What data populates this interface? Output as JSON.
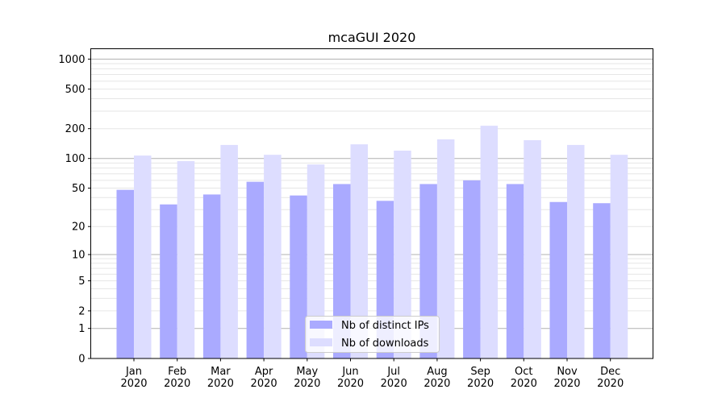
{
  "chart_data": {
    "type": "bar",
    "title": "mcaGUI 2020",
    "xlabel": "",
    "ylabel": "",
    "yscale": "log(v+1)",
    "ylim": [
      0,
      1270
    ],
    "yticks": [
      0,
      1,
      2,
      5,
      10,
      20,
      50,
      100,
      200,
      500,
      1000
    ],
    "categories": [
      "Jan\n2020",
      "Feb\n2020",
      "Mar\n2020",
      "Apr\n2020",
      "May\n2020",
      "Jun\n2020",
      "Jul\n2020",
      "Aug\n2020",
      "Sep\n2020",
      "Oct\n2020",
      "Nov\n2020",
      "Dec\n2020"
    ],
    "series": [
      {
        "name": "Nb of distinct IPs",
        "color": "#aaaaff",
        "values": [
          48,
          34,
          43,
          58,
          42,
          55,
          37,
          55,
          60,
          55,
          36,
          35
        ]
      },
      {
        "name": "Nb of downloads",
        "color": "#ddddff",
        "values": [
          107,
          94,
          137,
          109,
          87,
          139,
          120,
          156,
          214,
          153,
          137,
          109
        ]
      }
    ],
    "grid": true,
    "legend": "lower-center"
  }
}
